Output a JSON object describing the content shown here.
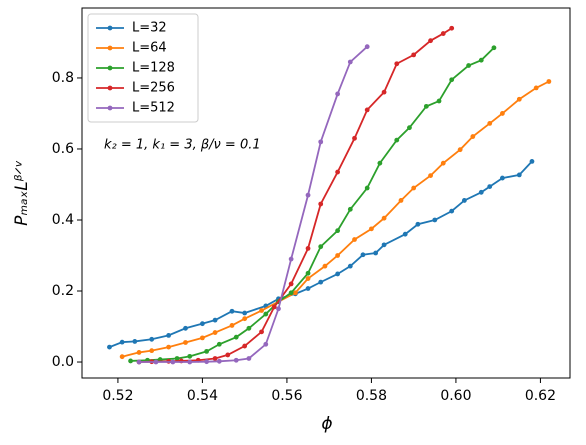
{
  "chart_data": {
    "type": "line",
    "xlabel": "ϕ",
    "ylabel": "PₘₐₓLᵝᐟᵛ",
    "annotation": "k₂ = 1, k₁ = 3, β/ν = 0.1",
    "xlim": [
      0.5115,
      0.627
    ],
    "ylim": [
      -0.045,
      0.997
    ],
    "xticks": [
      0.52,
      0.54,
      0.56,
      0.58,
      {
        "value": 0.6,
        "label": "0.60"
      },
      0.62
    ],
    "yticks": [
      {
        "value": 0,
        "label": "0.0"
      },
      0.2,
      0.4,
      0.6,
      0.8
    ],
    "legend": "upper left",
    "grid": false,
    "series": [
      {
        "name": "L=32",
        "color": "#1f77b4",
        "x": [
          0.518,
          0.521,
          0.524,
          0.528,
          0.532,
          0.536,
          0.54,
          0.543,
          0.547,
          0.55,
          0.555,
          0.558,
          0.562,
          0.565,
          0.568,
          0.572,
          0.575,
          0.578,
          0.581,
          0.583,
          0.588,
          0.591,
          0.595,
          0.599,
          0.602,
          0.606,
          0.608,
          0.611,
          0.615,
          0.618
        ],
        "values": [
          0.042,
          0.056,
          0.058,
          0.064,
          0.075,
          0.095,
          0.108,
          0.118,
          0.143,
          0.138,
          0.158,
          0.178,
          0.192,
          0.207,
          0.225,
          0.248,
          0.27,
          0.302,
          0.307,
          0.33,
          0.36,
          0.388,
          0.4,
          0.425,
          0.455,
          0.478,
          0.494,
          0.518,
          0.527,
          0.565
        ]
      },
      {
        "name": "L=64",
        "color": "#ff7f0e",
        "x": [
          0.521,
          0.525,
          0.528,
          0.532,
          0.536,
          0.54,
          0.543,
          0.547,
          0.55,
          0.554,
          0.558,
          0.562,
          0.565,
          0.569,
          0.572,
          0.576,
          0.58,
          0.583,
          0.587,
          0.59,
          0.594,
          0.597,
          0.601,
          0.604,
          0.608,
          0.611,
          0.615,
          0.619,
          0.622
        ],
        "values": [
          0.015,
          0.027,
          0.032,
          0.042,
          0.055,
          0.068,
          0.083,
          0.103,
          0.122,
          0.145,
          0.17,
          0.195,
          0.235,
          0.27,
          0.3,
          0.345,
          0.375,
          0.405,
          0.455,
          0.49,
          0.525,
          0.56,
          0.598,
          0.635,
          0.672,
          0.7,
          0.74,
          0.772,
          0.79
        ]
      },
      {
        "name": "L=128",
        "color": "#2ca02c",
        "x": [
          0.523,
          0.527,
          0.53,
          0.534,
          0.537,
          0.541,
          0.544,
          0.548,
          0.551,
          0.555,
          0.558,
          0.561,
          0.565,
          0.568,
          0.572,
          0.575,
          0.579,
          0.582,
          0.586,
          0.589,
          0.593,
          0.596,
          0.599,
          0.603,
          0.606,
          0.609
        ],
        "values": [
          0.003,
          0.005,
          0.007,
          0.01,
          0.016,
          0.03,
          0.05,
          0.07,
          0.095,
          0.135,
          0.17,
          0.195,
          0.25,
          0.325,
          0.37,
          0.43,
          0.49,
          0.56,
          0.625,
          0.66,
          0.72,
          0.735,
          0.795,
          0.835,
          0.85,
          0.885
        ]
      },
      {
        "name": "L=256",
        "color": "#d62728",
        "x": [
          0.525,
          0.528,
          0.532,
          0.535,
          0.539,
          0.543,
          0.546,
          0.55,
          0.554,
          0.557,
          0.561,
          0.565,
          0.568,
          0.572,
          0.576,
          0.579,
          0.583,
          0.586,
          0.59,
          0.594,
          0.597,
          0.599
        ],
        "values": [
          0,
          0.001,
          0.002,
          0.003,
          0.005,
          0.01,
          0.02,
          0.045,
          0.085,
          0.155,
          0.22,
          0.32,
          0.445,
          0.535,
          0.63,
          0.71,
          0.76,
          0.84,
          0.865,
          0.905,
          0.925,
          0.94
        ]
      },
      {
        "name": "L=512",
        "color": "#9467bd",
        "x": [
          0.525,
          0.529,
          0.533,
          0.537,
          0.541,
          0.544,
          0.548,
          0.551,
          0.555,
          0.558,
          0.561,
          0.565,
          0.568,
          0.572,
          0.575,
          0.579
        ],
        "values": [
          0,
          0,
          0,
          0,
          0.001,
          0.002,
          0.005,
          0.01,
          0.05,
          0.15,
          0.29,
          0.47,
          0.62,
          0.755,
          0.845,
          0.888
        ]
      }
    ]
  }
}
